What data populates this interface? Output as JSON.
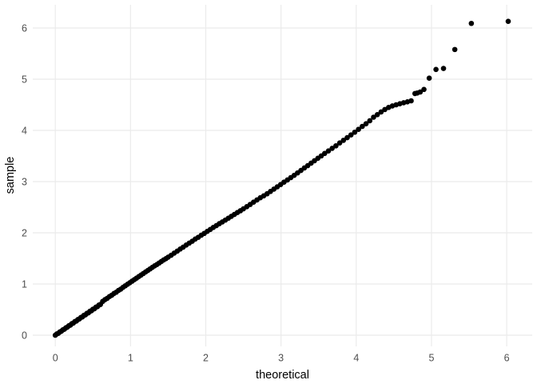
{
  "chart_data": {
    "type": "scatter",
    "subtype": "qq-plot",
    "title": "",
    "xlabel": "theoretical",
    "ylabel": "sample",
    "x_ticks": [
      0,
      1,
      2,
      3,
      4,
      5,
      6
    ],
    "y_ticks": [
      0,
      1,
      2,
      3,
      4,
      5,
      6
    ],
    "xlim": [
      -0.3,
      6.34
    ],
    "ylim": [
      -0.22,
      6.45
    ],
    "grid": "major-only",
    "legend": "none",
    "colors": {
      "point": "#000000",
      "grid": "#EBEBEB",
      "tick_label": "#4D4D4D",
      "axis_title": "#000000",
      "background": "#FFFFFF"
    },
    "points": [
      [
        0.0,
        0.0
      ],
      [
        0.02,
        0.025
      ],
      [
        0.04,
        0.037
      ],
      [
        0.06,
        0.063
      ],
      [
        0.08,
        0.077
      ],
      [
        0.1,
        0.104
      ],
      [
        0.12,
        0.117
      ],
      [
        0.14,
        0.144
      ],
      [
        0.16,
        0.157
      ],
      [
        0.18,
        0.185
      ],
      [
        0.2,
        0.196
      ],
      [
        0.22,
        0.226
      ],
      [
        0.24,
        0.237
      ],
      [
        0.26,
        0.266
      ],
      [
        0.28,
        0.276
      ],
      [
        0.3,
        0.306
      ],
      [
        0.32,
        0.317
      ],
      [
        0.34,
        0.347
      ],
      [
        0.36,
        0.356
      ],
      [
        0.38,
        0.387
      ],
      [
        0.4,
        0.397
      ],
      [
        0.42,
        0.427
      ],
      [
        0.44,
        0.436
      ],
      [
        0.46,
        0.467
      ],
      [
        0.48,
        0.477
      ],
      [
        0.5,
        0.508
      ],
      [
        0.52,
        0.517
      ],
      [
        0.54,
        0.548
      ],
      [
        0.56,
        0.558
      ],
      [
        0.58,
        0.589
      ],
      [
        0.6,
        0.6
      ],
      [
        0.63,
        0.66
      ],
      [
        0.66,
        0.695
      ],
      [
        0.69,
        0.72
      ],
      [
        0.72,
        0.755
      ],
      [
        0.75,
        0.78
      ],
      [
        0.78,
        0.815
      ],
      [
        0.81,
        0.84
      ],
      [
        0.84,
        0.875
      ],
      [
        0.87,
        0.9
      ],
      [
        0.9,
        0.935
      ],
      [
        0.93,
        0.965
      ],
      [
        0.96,
        0.995
      ],
      [
        0.99,
        1.025
      ],
      [
        1.02,
        1.055
      ],
      [
        1.05,
        1.085
      ],
      [
        1.08,
        1.115
      ],
      [
        1.11,
        1.145
      ],
      [
        1.14,
        1.175
      ],
      [
        1.17,
        1.205
      ],
      [
        1.2,
        1.235
      ],
      [
        1.23,
        1.265
      ],
      [
        1.26,
        1.295
      ],
      [
        1.29,
        1.325
      ],
      [
        1.32,
        1.355
      ],
      [
        1.35,
        1.38
      ],
      [
        1.38,
        1.41
      ],
      [
        1.41,
        1.44
      ],
      [
        1.44,
        1.47
      ],
      [
        1.47,
        1.495
      ],
      [
        1.5,
        1.525
      ],
      [
        1.54,
        1.562
      ],
      [
        1.58,
        1.603
      ],
      [
        1.62,
        1.641
      ],
      [
        1.66,
        1.682
      ],
      [
        1.7,
        1.72
      ],
      [
        1.74,
        1.761
      ],
      [
        1.78,
        1.799
      ],
      [
        1.82,
        1.835
      ],
      [
        1.86,
        1.878
      ],
      [
        1.9,
        1.912
      ],
      [
        1.94,
        1.953
      ],
      [
        1.98,
        1.988
      ],
      [
        2.02,
        2.028
      ],
      [
        2.06,
        2.065
      ],
      [
        2.1,
        2.105
      ],
      [
        2.14,
        2.14
      ],
      [
        2.18,
        2.178
      ],
      [
        2.22,
        2.212
      ],
      [
        2.26,
        2.248
      ],
      [
        2.3,
        2.285
      ],
      [
        2.34,
        2.322
      ],
      [
        2.38,
        2.358
      ],
      [
        2.42,
        2.395
      ],
      [
        2.46,
        2.43
      ],
      [
        2.5,
        2.468
      ],
      [
        2.545,
        2.51
      ],
      [
        2.59,
        2.553
      ],
      [
        2.635,
        2.598
      ],
      [
        2.68,
        2.641
      ],
      [
        2.725,
        2.684
      ],
      [
        2.77,
        2.722
      ],
      [
        2.815,
        2.762
      ],
      [
        2.86,
        2.808
      ],
      [
        2.905,
        2.852
      ],
      [
        2.95,
        2.898
      ],
      [
        2.995,
        2.942
      ],
      [
        3.04,
        2.99
      ],
      [
        3.085,
        3.032
      ],
      [
        3.13,
        3.078
      ],
      [
        3.175,
        3.122
      ],
      [
        3.22,
        3.17
      ],
      [
        3.265,
        3.218
      ],
      [
        3.31,
        3.266
      ],
      [
        3.355,
        3.312
      ],
      [
        3.4,
        3.36
      ],
      [
        3.445,
        3.408
      ],
      [
        3.49,
        3.456
      ],
      [
        3.535,
        3.502
      ],
      [
        3.58,
        3.55
      ],
      [
        3.63,
        3.598
      ],
      [
        3.68,
        3.65
      ],
      [
        3.73,
        3.699
      ],
      [
        3.78,
        3.755
      ],
      [
        3.83,
        3.806
      ],
      [
        3.88,
        3.858
      ],
      [
        3.93,
        3.912
      ],
      [
        3.98,
        3.965
      ],
      [
        4.03,
        4.02
      ],
      [
        4.08,
        4.078
      ],
      [
        4.13,
        4.13
      ],
      [
        4.18,
        4.188
      ],
      [
        4.23,
        4.258
      ],
      [
        4.28,
        4.308
      ],
      [
        4.33,
        4.36
      ],
      [
        4.38,
        4.408
      ],
      [
        4.43,
        4.448
      ],
      [
        4.48,
        4.478
      ],
      [
        4.53,
        4.5
      ],
      [
        4.58,
        4.52
      ],
      [
        4.63,
        4.54
      ],
      [
        4.68,
        4.558
      ],
      [
        4.73,
        4.578
      ],
      [
        4.78,
        4.72
      ],
      [
        4.81,
        4.73
      ],
      [
        4.85,
        4.75
      ],
      [
        4.9,
        4.8
      ],
      [
        4.97,
        5.02
      ],
      [
        5.06,
        5.19
      ],
      [
        5.16,
        5.21
      ],
      [
        5.31,
        5.58
      ],
      [
        5.53,
        6.09
      ],
      [
        6.02,
        6.13
      ]
    ]
  }
}
